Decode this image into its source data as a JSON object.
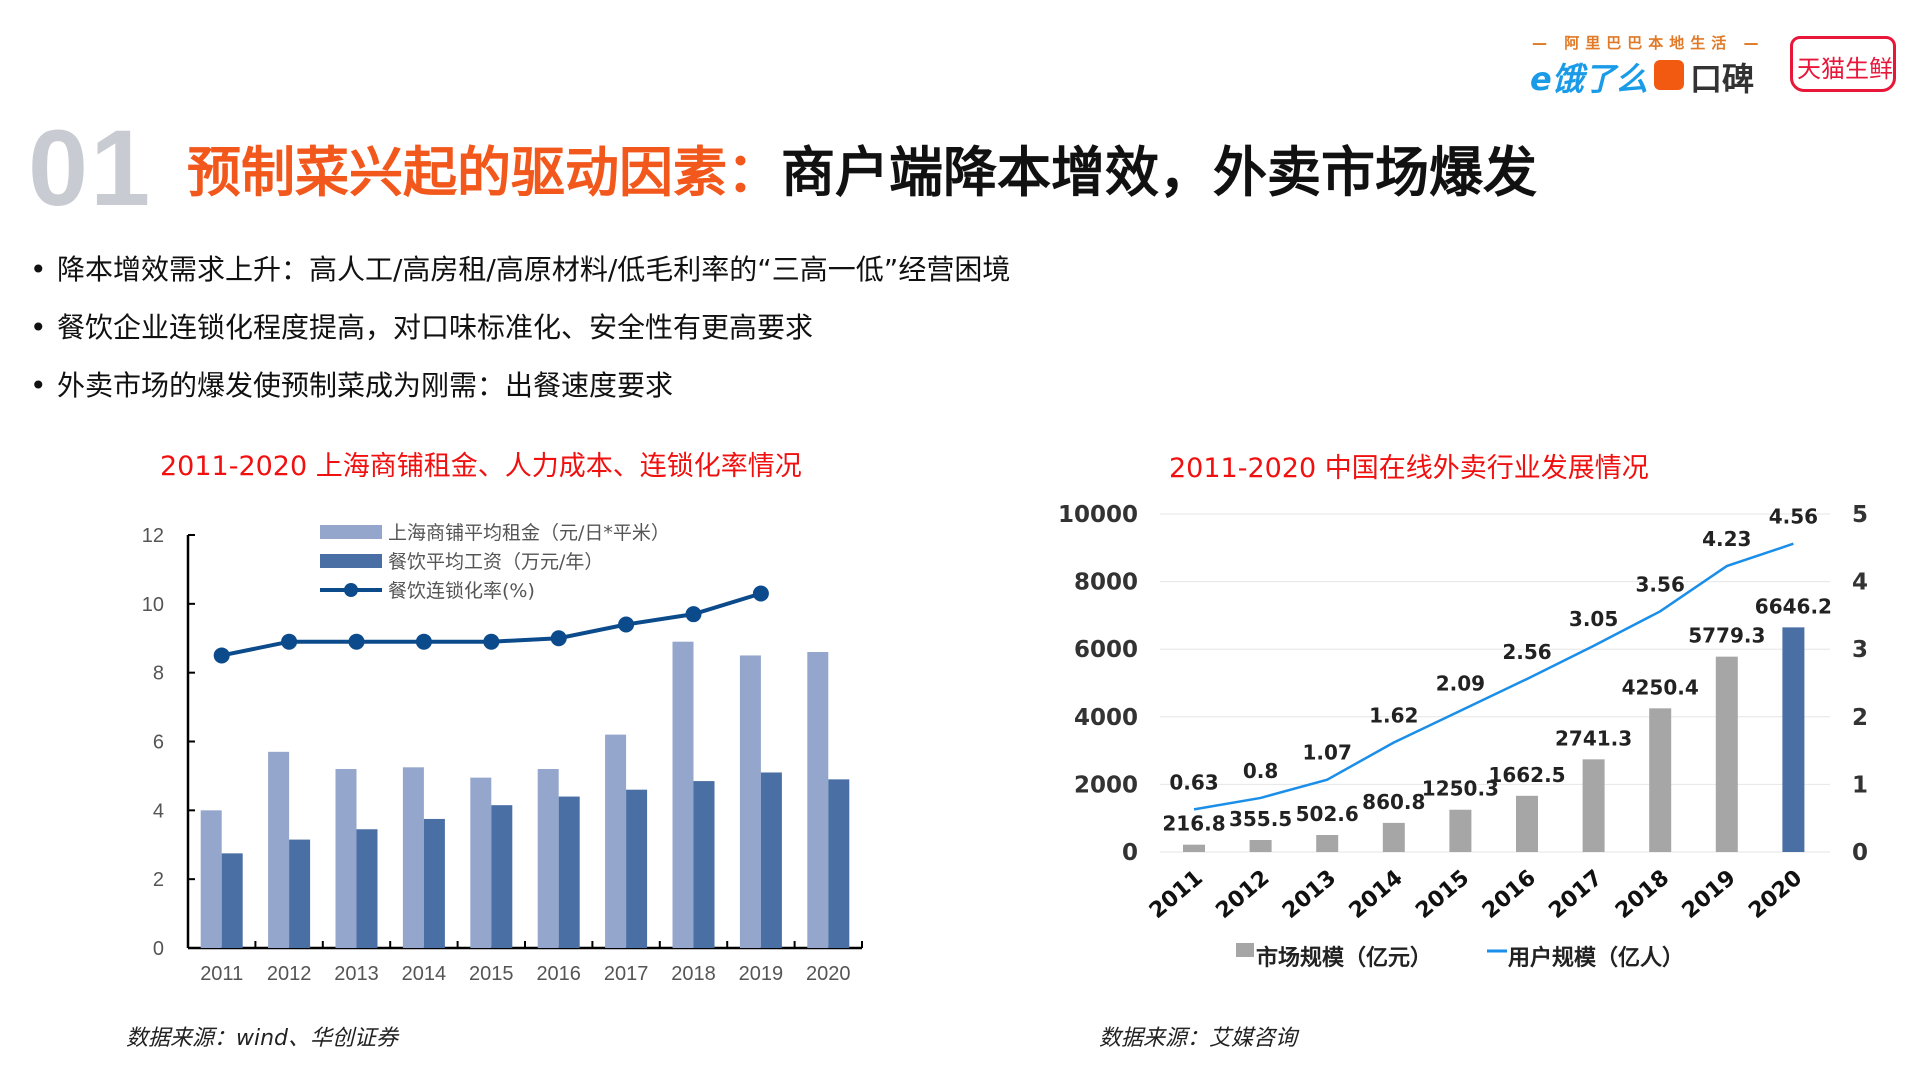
{
  "header": {
    "number": "01",
    "title_highlight": "预制菜兴起的驱动因素：",
    "title_rest": "商户端降本增效，外卖市场爆发",
    "logos": {
      "alibaba": "— 阿里巴巴本地生活 —",
      "eleme": "e饿了么",
      "koubei": "口碑",
      "tmall": "天猫生鲜"
    }
  },
  "bullets": [
    "降本增效需求上升：高人工/高房租/高原材料/低毛利率的“三高一低”经营困境",
    "餐饮企业连锁化程度提高，对口味标准化、安全性有更高要求",
    "外卖市场的爆发使预制菜成为刚需：出餐速度要求"
  ],
  "bullet_symbol": "•",
  "sources": {
    "left": "数据来源：wind、华创证券",
    "right": "数据来源：艾媒咨询"
  },
  "colors": {
    "accent": "#f2571c",
    "chart_title": "#f01010",
    "rent": "#94a6cc",
    "wage": "#4a6fa5",
    "chain": "#0b4a8b",
    "market": "#a6a6a6",
    "market_2020": "#4a6fa5",
    "users": "#1a8ee8"
  },
  "chart_data": [
    {
      "type": "bar",
      "title": "2011-2020 上海商铺租金、人力成本、连锁化率情况",
      "categories": [
        "2011",
        "2012",
        "2013",
        "2014",
        "2015",
        "2016",
        "2017",
        "2018",
        "2019",
        "2020"
      ],
      "ylim": [
        0,
        12
      ],
      "yticks": [
        "0",
        "2",
        "4",
        "6",
        "8",
        "10",
        "12"
      ],
      "legend": "top",
      "series": [
        {
          "name": "上海商铺平均租金（元/日*平米）",
          "type": "bar",
          "values": [
            4.0,
            5.7,
            5.2,
            5.25,
            4.95,
            5.2,
            6.2,
            8.9,
            8.5,
            8.6
          ]
        },
        {
          "name": "餐饮平均工资（万元/年）",
          "type": "bar",
          "values": [
            2.75,
            3.15,
            3.45,
            3.75,
            4.15,
            4.4,
            4.6,
            4.85,
            5.1,
            4.9
          ]
        },
        {
          "name": "餐饮连锁化率(%)",
          "type": "line",
          "values": [
            8.5,
            8.9,
            8.9,
            8.9,
            8.9,
            9.0,
            9.4,
            9.7,
            10.3,
            null
          ]
        }
      ]
    },
    {
      "type": "bar",
      "title": "2011-2020 中国在线外卖行业发展情况",
      "categories": [
        "2011",
        "2012",
        "2013",
        "2014",
        "2015",
        "2016",
        "2017",
        "2018",
        "2019",
        "2020"
      ],
      "ylim": [
        0,
        10000
      ],
      "yticks": [
        "0",
        "2000",
        "4000",
        "6000",
        "8000",
        "10000"
      ],
      "y2lim": [
        0,
        5
      ],
      "y2ticks": [
        "0",
        "1",
        "2",
        "3",
        "4",
        "5"
      ],
      "legend": "bottom",
      "series": [
        {
          "name": "市场规模（亿元）",
          "type": "bar",
          "values": [
            216.8,
            355.5,
            502.6,
            860.8,
            1250.3,
            1662.5,
            2741.3,
            4250.4,
            5779.3,
            6646.2
          ],
          "labels": [
            "216.8",
            "355.5",
            "502.6",
            "860.8",
            "1250.3",
            "1662.5",
            "2741.3",
            "4250.4",
            "5779.3",
            "6646.2"
          ]
        },
        {
          "name": "用户规模（亿人）",
          "type": "line",
          "axis": "right",
          "values": [
            0.63,
            0.8,
            1.07,
            1.62,
            2.09,
            2.56,
            3.05,
            3.56,
            4.23,
            4.56
          ],
          "labels": [
            "0.63",
            "0.8",
            "1.07",
            "1.62",
            "2.09",
            "2.56",
            "3.05",
            "3.56",
            "4.23",
            "4.56"
          ]
        }
      ]
    }
  ]
}
